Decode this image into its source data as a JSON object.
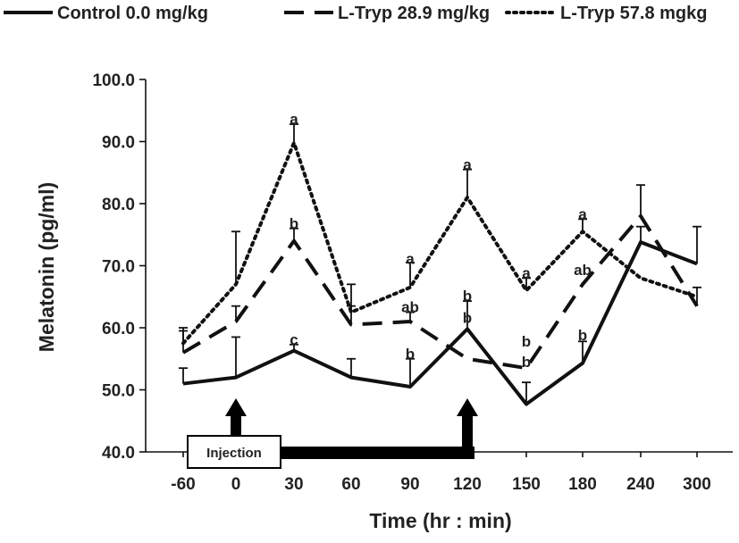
{
  "chart_data": {
    "type": "line",
    "title": "",
    "xlabel": "Time (hr : min)",
    "ylabel": "Melatonin (pg/ml)",
    "categories": [
      "-60",
      "0",
      "30",
      "60",
      "90",
      "120",
      "150",
      "180",
      "240",
      "300"
    ],
    "ylim": [
      40.0,
      100.0
    ],
    "yticks": [
      "40.0",
      "50.0",
      "60.0",
      "70.0",
      "80.0",
      "90.0",
      "100.0"
    ],
    "grid": false,
    "legend_position": "top",
    "series": [
      {
        "name": "Control 0.0 mg/kg",
        "style": "solid",
        "values": [
          51.0,
          52.0,
          56.3,
          52.0,
          50.5,
          59.8,
          47.7,
          54.3,
          73.8,
          70.3
        ],
        "errors": [
          2.5,
          6.5,
          1.0,
          3.0,
          4.5,
          4.5,
          3.5,
          3.5,
          2.5,
          6.0
        ]
      },
      {
        "name": "L-Tryp 28.9 mg/kg",
        "style": "dashed",
        "values": [
          56.0,
          61.0,
          74.0,
          60.5,
          61.0,
          55.0,
          53.5,
          67.0,
          78.0,
          63.5
        ],
        "errors": [
          3.5,
          2.5,
          2.0,
          3.0,
          1.5,
          0.0,
          0.0,
          0.0,
          5.0,
          3.0
        ]
      },
      {
        "name": "L-Tryp 57.8 mgkg",
        "style": "dotted",
        "values": [
          57.5,
          67.0,
          89.8,
          62.5,
          66.5,
          81.0,
          66.0,
          75.5,
          68.0,
          65.0
        ],
        "errors": [
          2.5,
          8.5,
          3.0,
          4.5,
          4.0,
          4.5,
          2.0,
          2.0,
          0.0,
          0.0
        ]
      }
    ],
    "annotations": [
      {
        "x": "30",
        "label": "a",
        "y": 92.8
      },
      {
        "x": "30",
        "label": "b",
        "y": 76.0
      },
      {
        "x": "30",
        "label": "c",
        "y": 57.3
      },
      {
        "x": "90",
        "label": "a",
        "y": 70.3
      },
      {
        "x": "90",
        "label": "ab",
        "y": 62.5
      },
      {
        "x": "90",
        "label": "b",
        "y": 55.0
      },
      {
        "x": "120",
        "label": "a",
        "y": 85.5
      },
      {
        "x": "120",
        "label": "b",
        "y": 64.3
      },
      {
        "x": "120",
        "label": "b",
        "y": 60.8
      },
      {
        "x": "150",
        "label": "a",
        "y": 68.0
      },
      {
        "x": "150",
        "label": "b",
        "y": 57.0
      },
      {
        "x": "150",
        "label": "b",
        "y": 53.7
      },
      {
        "x": "180",
        "label": "a",
        "y": 77.5
      },
      {
        "x": "180",
        "label": "ab",
        "y": 68.5
      },
      {
        "x": "180",
        "label": "b",
        "y": 58.0
      }
    ],
    "injection": {
      "label": "Injection",
      "arrows_at": [
        "0",
        "120"
      ]
    }
  }
}
